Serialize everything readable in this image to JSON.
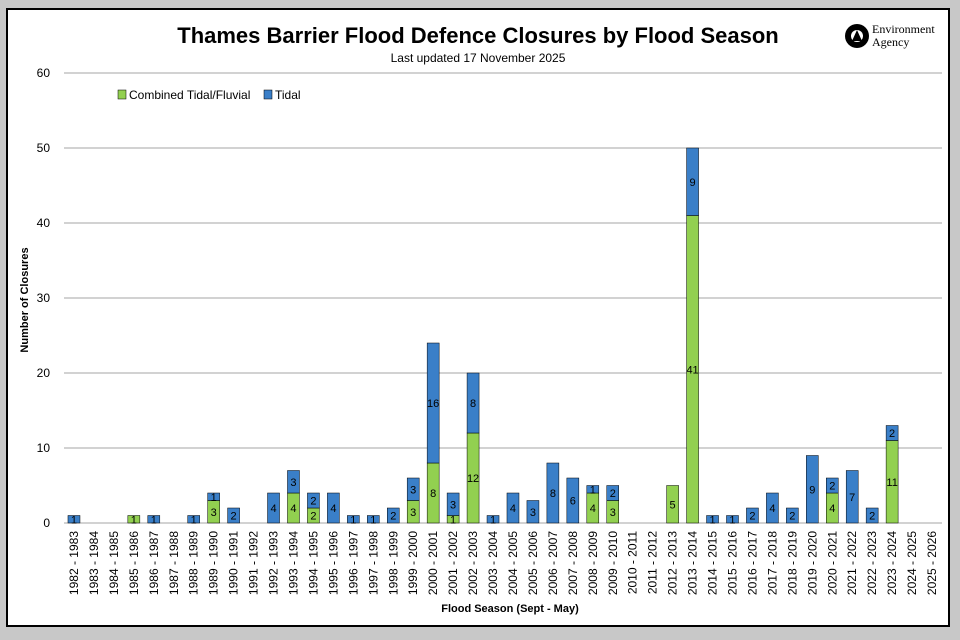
{
  "logo": {
    "line1": "Environment",
    "line2": "Agency"
  },
  "chart_data": {
    "type": "bar",
    "stacked": true,
    "title": "Thames Barrier Flood Defence Closures by Flood Season",
    "subtitle": "Last updated  17 November 2025",
    "xlabel": "Flood Season (Sept -  May)",
    "ylabel": "Number of Closures",
    "ylim": [
      0,
      60
    ],
    "yticks": [
      0,
      10,
      20,
      30,
      40,
      50,
      60
    ],
    "grid": true,
    "legend_position": "top-left",
    "categories": [
      "1982 - 1983",
      "1983 - 1984",
      "1984 - 1985",
      "1985 - 1986",
      "1986 - 1987",
      "1987 - 1988",
      "1988 - 1989",
      "1989 - 1990",
      "1990 - 1991",
      "1991 - 1992",
      "1992 - 1993",
      "1993 - 1994",
      "1994 - 1995",
      "1995 - 1996",
      "1996 - 1997",
      "1997 - 1998",
      "1998 - 1999",
      "1999 - 2000",
      "2000 - 2001",
      "2001 - 2002",
      "2002 - 2003",
      "2003 - 2004",
      "2004 - 2005",
      "2005 - 2006",
      "2006 - 2007",
      "2007 - 2008",
      "2008 - 2009",
      "2009 - 2010",
      "2010 - 2011",
      "2011 - 2012",
      "2012 - 2013",
      "2013 - 2014",
      "2014 - 2015",
      "2015 - 2016",
      "2016 - 2017",
      "2017 - 2018",
      "2018 - 2019",
      "2019 - 2020",
      "2020 - 2021",
      "2021 - 2022",
      "2022 - 2023",
      "2023 - 2024",
      "2024 - 2025",
      "2025 - 2026"
    ],
    "series": [
      {
        "name": "Combined Tidal/Fluvial",
        "color": "#92d050",
        "values": [
          0,
          0,
          0,
          1,
          0,
          0,
          0,
          3,
          0,
          0,
          0,
          4,
          2,
          0,
          0,
          0,
          0,
          3,
          8,
          1,
          12,
          0,
          0,
          0,
          0,
          0,
          4,
          3,
          0,
          0,
          5,
          41,
          0,
          0,
          0,
          0,
          0,
          0,
          4,
          0,
          0,
          11,
          0,
          0
        ]
      },
      {
        "name": "Tidal",
        "color": "#3a7fc8",
        "values": [
          1,
          0,
          0,
          0,
          1,
          0,
          1,
          1,
          2,
          0,
          4,
          3,
          2,
          4,
          1,
          1,
          2,
          3,
          16,
          3,
          8,
          1,
          4,
          3,
          8,
          6,
          1,
          2,
          0,
          0,
          0,
          9,
          1,
          1,
          2,
          4,
          2,
          9,
          2,
          7,
          2,
          2,
          0,
          0
        ]
      }
    ]
  }
}
